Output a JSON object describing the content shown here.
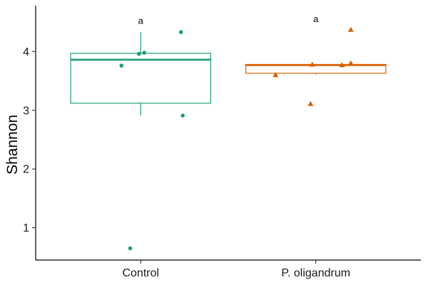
{
  "chart_data": {
    "type": "box",
    "ylabel": "Shannon",
    "xlabel": "",
    "ylim": [
      0.45,
      4.78
    ],
    "yticks": [
      1,
      2,
      3,
      4
    ],
    "grid": false,
    "legend": "none",
    "categories": [
      "Control",
      "P. oligandrum"
    ],
    "groups": [
      {
        "category": "Control",
        "color": "#1b9e77",
        "marker": "circle",
        "box": {
          "whisker_low": 2.91,
          "q1": 3.12,
          "median": 3.86,
          "q3": 3.97,
          "whisker_high": 4.33
        },
        "points": [
          {
            "x": 0.99,
            "y": 3.96
          },
          {
            "x": 1.02,
            "y": 3.98
          },
          {
            "x": 0.89,
            "y": 3.76
          },
          {
            "x": 1.23,
            "y": 4.33
          },
          {
            "x": 1.24,
            "y": 2.91
          },
          {
            "x": 0.94,
            "y": 0.65
          }
        ],
        "label": "a",
        "label_y": 4.52
      },
      {
        "category": "P. oligandrum",
        "color": "#d95f02",
        "marker": "triangle",
        "box": {
          "whisker_low": 3.61,
          "q1": 3.63,
          "median": 3.77,
          "q3": 3.78,
          "whisker_high": 3.79
        },
        "points": [
          {
            "x": 1.77,
            "y": 3.6
          },
          {
            "x": 1.97,
            "y": 3.11
          },
          {
            "x": 1.98,
            "y": 3.78
          },
          {
            "x": 2.15,
            "y": 3.77
          },
          {
            "x": 2.2,
            "y": 3.8
          },
          {
            "x": 2.2,
            "y": 4.37
          }
        ],
        "label": "a",
        "label_y": 4.55
      }
    ]
  }
}
